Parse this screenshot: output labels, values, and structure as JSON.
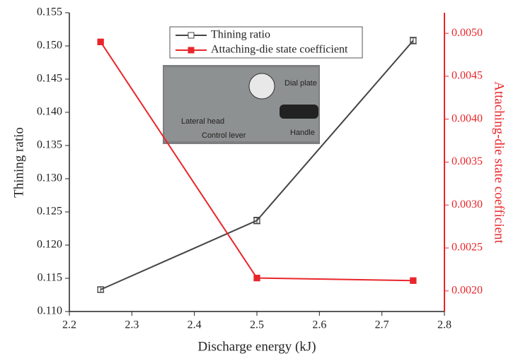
{
  "chart_data": {
    "type": "line",
    "x_label": "Discharge energy (kJ)",
    "y_label": "Thining ratio",
    "y2_label": "Attaching-die state coefficient",
    "xlim": [
      2.2,
      2.8
    ],
    "xticks": [
      2.2,
      2.3,
      2.4,
      2.5,
      2.6,
      2.7,
      2.8
    ],
    "ylim": [
      0.11,
      0.155
    ],
    "yticks": [
      {
        "value": 0.11,
        "label": "0.110"
      },
      0.115,
      {
        "value": 0.12,
        "label": "0.120"
      },
      0.125,
      {
        "value": 0.13,
        "label": "0.130"
      },
      0.135,
      {
        "value": 0.14,
        "label": "0.140"
      },
      0.145,
      {
        "value": 0.15,
        "label": "0.150"
      },
      0.155
    ],
    "y2lim": [
      0.00176,
      0.00524
    ],
    "y2ticks": [
      {
        "value": 0.002,
        "label": "0.0020"
      },
      {
        "value": 0.0025,
        "label": "0.0025"
      },
      {
        "value": 0.003,
        "label": "0.0030"
      },
      {
        "value": 0.0035,
        "label": "0.0035"
      },
      {
        "value": 0.004,
        "label": "0.0040"
      },
      {
        "value": 0.0045,
        "label": "0.0045"
      },
      {
        "value": 0.005,
        "label": "0.0050"
      }
    ],
    "x": [
      2.25,
      2.5,
      2.75
    ],
    "series": [
      {
        "name": "Thining ratio",
        "color": "#444444",
        "values": [
          0.1133,
          0.1237,
          0.1508
        ],
        "errors": [
          0.0004,
          0.0005,
          0.0005
        ]
      },
      {
        "name": "Attaching-die state coefficient",
        "color": "#e8262a",
        "axis": "y2",
        "values": [
          0.0049,
          0.00215,
          0.00212
        ]
      }
    ],
    "annotations": [
      "Dial plate",
      "Lateral head",
      "Control lever",
      "Handle"
    ],
    "grid": false
  }
}
